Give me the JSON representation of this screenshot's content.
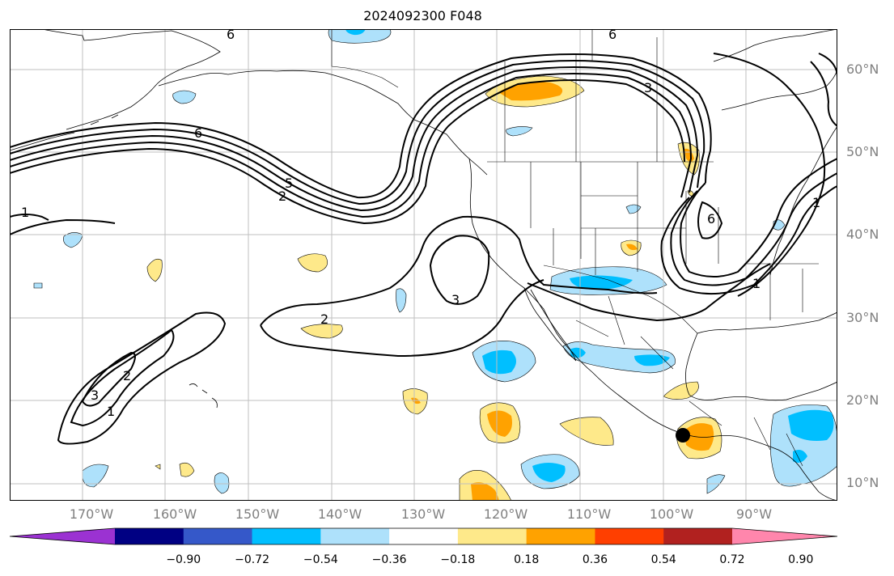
{
  "title": "2024092300 F048",
  "lat_labels": [
    "60°N",
    "50°N",
    "40°N",
    "30°N",
    "20°N",
    "10°N"
  ],
  "lon_labels": [
    "170°W",
    "160°W",
    "150°W",
    "140°W",
    "130°W",
    "120°W",
    "110°W",
    "100°W",
    "90°W"
  ],
  "contour_labels": [
    "6",
    "6",
    "6",
    "5",
    "2",
    "2",
    "3",
    "3",
    "3",
    "2",
    "1",
    "1",
    "1",
    "6",
    "1"
  ],
  "colorbar": {
    "tick_labels": [
      "−0.90",
      "−0.72",
      "−0.54",
      "−0.36",
      "−0.18",
      "0.18",
      "0.36",
      "0.54",
      "0.72",
      "0.90"
    ],
    "colors": [
      "#9b32d2",
      "#000083",
      "#3558c9",
      "#00bfff",
      "#aee1fb",
      "#ffffff",
      "#fee98a",
      "#ffa200",
      "#ff3f00",
      "#b1211f",
      "#ff86ac"
    ]
  },
  "colors": {
    "contour": "#000000",
    "coast": "#000000",
    "grid": "#bfbfbf",
    "tick_label": "#808080",
    "pos_light": "#fee98a",
    "pos_mid": "#ffa200",
    "neg_light": "#aee1fb",
    "neg_mid": "#00bfff"
  }
}
